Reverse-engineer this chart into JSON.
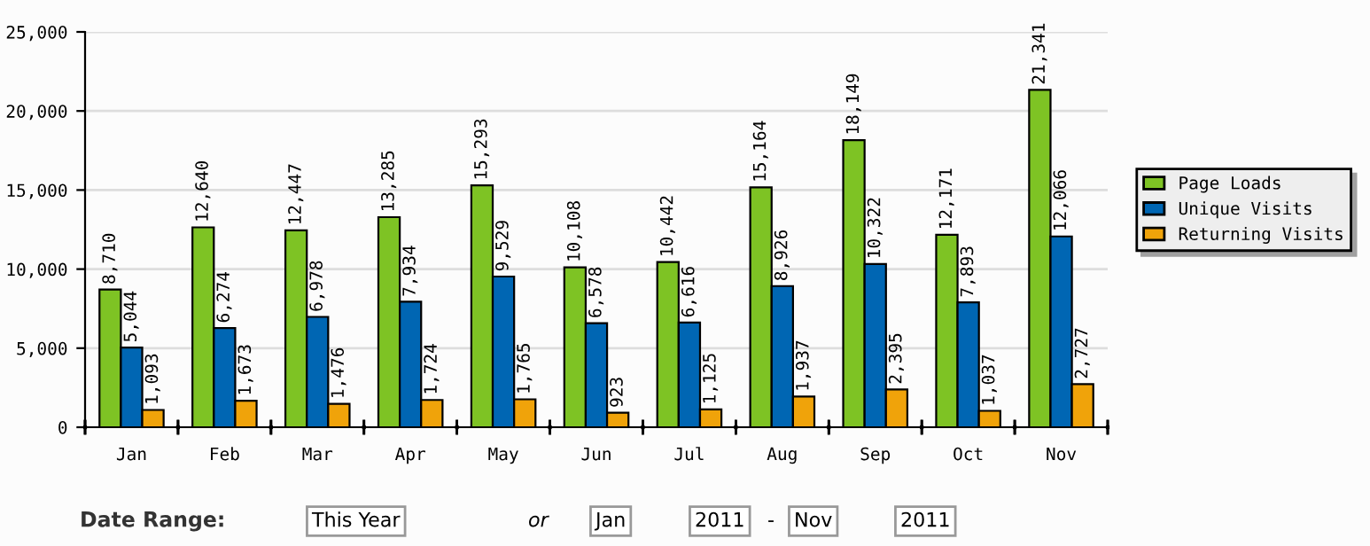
{
  "chart_data": {
    "type": "bar",
    "categories": [
      "Jan",
      "Feb",
      "Mar",
      "Apr",
      "May",
      "Jun",
      "Jul",
      "Aug",
      "Sep",
      "Oct",
      "Nov"
    ],
    "series": [
      {
        "name": "Page Loads",
        "color": "#7ec324",
        "values": [
          8710,
          12640,
          12447,
          13285,
          15293,
          10108,
          10442,
          15164,
          18149,
          12171,
          21341
        ]
      },
      {
        "name": "Unique Visits",
        "color": "#0066b3",
        "values": [
          5044,
          6274,
          6978,
          7934,
          9529,
          6578,
          6616,
          8926,
          10322,
          7893,
          12066
        ]
      },
      {
        "name": "Returning Visits",
        "color": "#f0a30a",
        "values": [
          1093,
          1673,
          1476,
          1724,
          1765,
          923,
          1125,
          1937,
          2395,
          1037,
          2727
        ]
      }
    ],
    "ylim": [
      0,
      25000
    ],
    "yticks": [
      {
        "value": 0,
        "label": "0"
      },
      {
        "value": 5000,
        "label": "5,000"
      },
      {
        "value": 10000,
        "label": "10,000"
      },
      {
        "value": 15000,
        "label": "15,000"
      },
      {
        "value": 20000,
        "label": "20,000"
      },
      {
        "value": 25000,
        "label": "25,000"
      }
    ],
    "value_labels": [
      [
        "8,710",
        "12,640",
        "12,447",
        "13,285",
        "15,293",
        "10,108",
        "10,442",
        "15,164",
        "18,149",
        "12,171",
        "21,341"
      ],
      [
        "5,044",
        "6,274",
        "6,978",
        "7,934",
        "9,529",
        "6,578",
        "6,616",
        "8,926",
        "10,322",
        "7,893",
        "12,066"
      ],
      [
        "1,093",
        "1,673",
        "1,476",
        "1,724",
        "1,765",
        "923",
        "1,125",
        "1,937",
        "2,395",
        "1,037",
        "2,727"
      ]
    ],
    "grid": "y",
    "legend": "right",
    "annotations": [
      "Date Range:",
      "This Year",
      "or",
      "Jan",
      "2011",
      "-",
      "Nov",
      "2011"
    ]
  }
}
